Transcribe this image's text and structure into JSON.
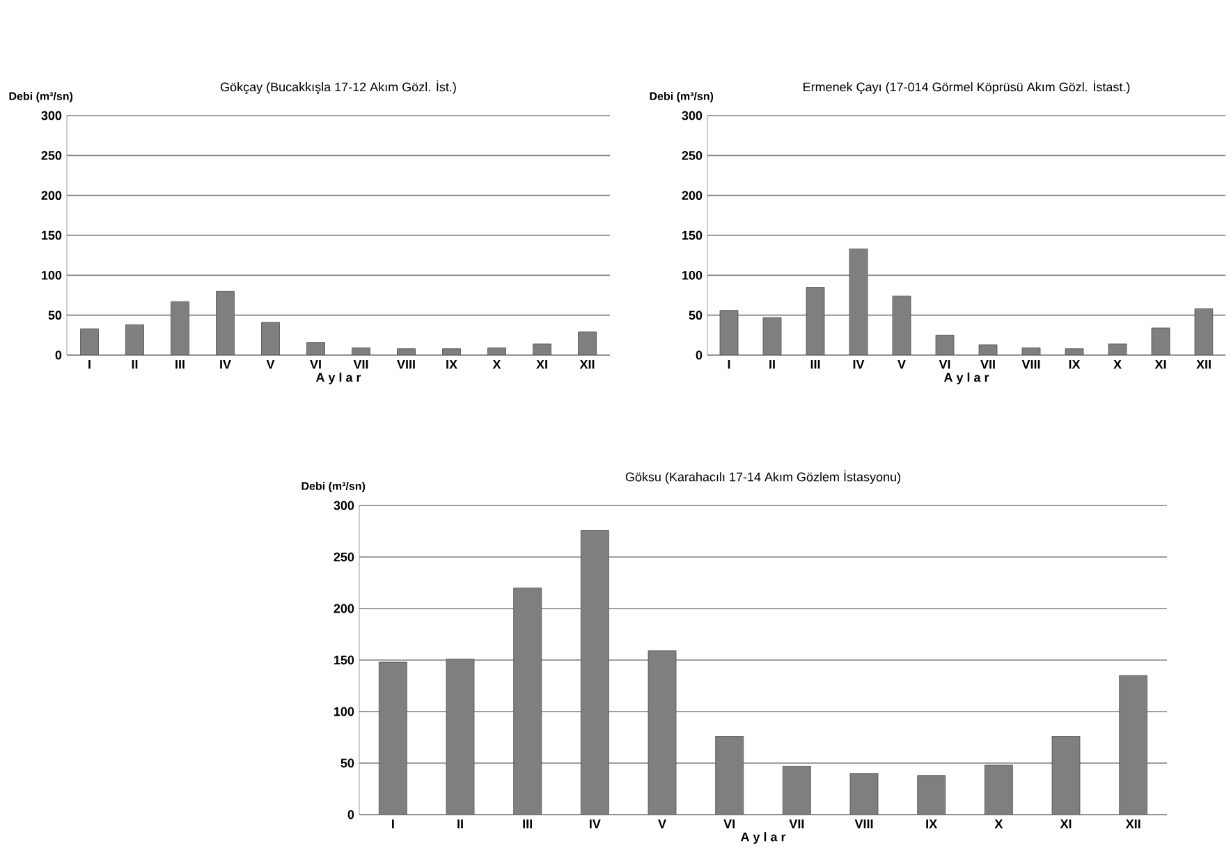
{
  "chart_data": [
    {
      "type": "bar",
      "title": "Gökçay (Bucakkışla 17-12 Akım Gözl. İst.)",
      "ylabel": "Debi (m³/sn)",
      "xlabel": "A y l a r",
      "categories": [
        "I",
        "II",
        "III",
        "IV",
        "V",
        "VI",
        "VII",
        "VIII",
        "IX",
        "X",
        "XI",
        "XII"
      ],
      "values": [
        33,
        38,
        67,
        80,
        41,
        16,
        9,
        8,
        8,
        9,
        14,
        29
      ],
      "color": "#7f7f7f",
      "ylim": [
        0,
        300
      ],
      "yticks": [
        0,
        50,
        100,
        150,
        200,
        250,
        300
      ],
      "grid": "y"
    },
    {
      "type": "bar",
      "title": "Ermenek Çayı (17-014 Görmel Köprüsü Akım Gözl. İstast.)",
      "ylabel": "Debi (m³/sn)",
      "xlabel": "A y l a r",
      "categories": [
        "I",
        "II",
        "III",
        "IV",
        "V",
        "VI",
        "VII",
        "VIII",
        "IX",
        "X",
        "XI",
        "XII"
      ],
      "values": [
        56,
        47,
        85,
        133,
        74,
        25,
        13,
        9,
        8,
        14,
        34,
        58
      ],
      "color": "#7f7f7f",
      "ylim": [
        0,
        300
      ],
      "yticks": [
        0,
        50,
        100,
        150,
        200,
        250,
        300
      ],
      "grid": "y"
    },
    {
      "type": "bar",
      "title": "Göksu (Karahacılı 17-14 Akım Gözlem İstasyonu)",
      "ylabel": "Debi (m³/sn)",
      "xlabel": "A y l a r",
      "categories": [
        "I",
        "II",
        "III",
        "IV",
        "V",
        "VI",
        "VII",
        "VIII",
        "IX",
        "X",
        "XI",
        "XII"
      ],
      "values": [
        148,
        151,
        220,
        276,
        159,
        76,
        47,
        40,
        38,
        48,
        76,
        135
      ],
      "color": "#7f7f7f",
      "ylim": [
        0,
        300
      ],
      "yticks": [
        0,
        50,
        100,
        150,
        200,
        250,
        300
      ],
      "grid": "y"
    }
  ]
}
